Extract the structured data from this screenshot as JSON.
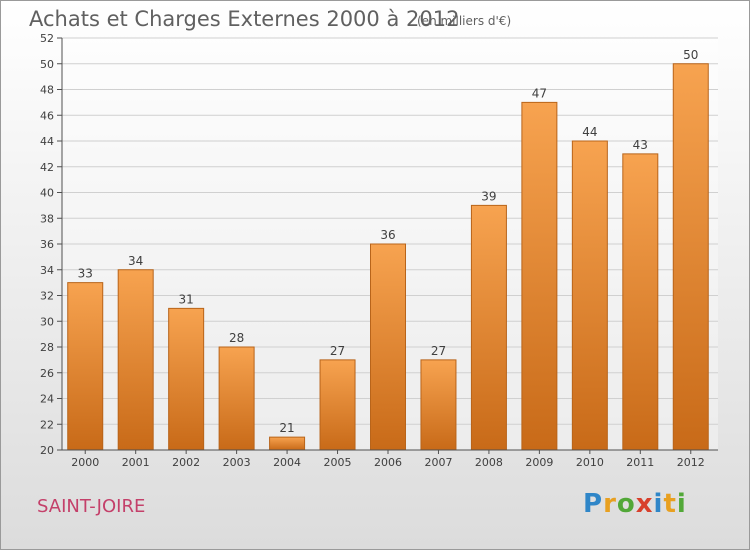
{
  "page": {
    "commune": "SAINT-JOIRE",
    "logo_text": "Proxiti"
  },
  "chart_data": {
    "type": "bar",
    "title": "Achats et Charges Externes 2000 à 2012",
    "subtitle": "(en milliers d'€)",
    "categories": [
      "2000",
      "2001",
      "2002",
      "2003",
      "2004",
      "2005",
      "2006",
      "2007",
      "2008",
      "2009",
      "2010",
      "2011",
      "2012"
    ],
    "values": [
      33,
      34,
      31,
      28,
      21,
      27,
      36,
      27,
      39,
      47,
      44,
      43,
      50
    ],
    "ylim": [
      20,
      52
    ],
    "yticks": [
      20,
      22,
      24,
      26,
      28,
      30,
      32,
      34,
      36,
      38,
      40,
      42,
      44,
      46,
      48,
      50,
      52
    ],
    "grid": true,
    "colors": {
      "bar_top": "#f7a350",
      "bar_bottom": "#c86a18",
      "bar_edge": "#b8641a",
      "axis": "#505050",
      "grid": "#d0d0d0"
    }
  }
}
